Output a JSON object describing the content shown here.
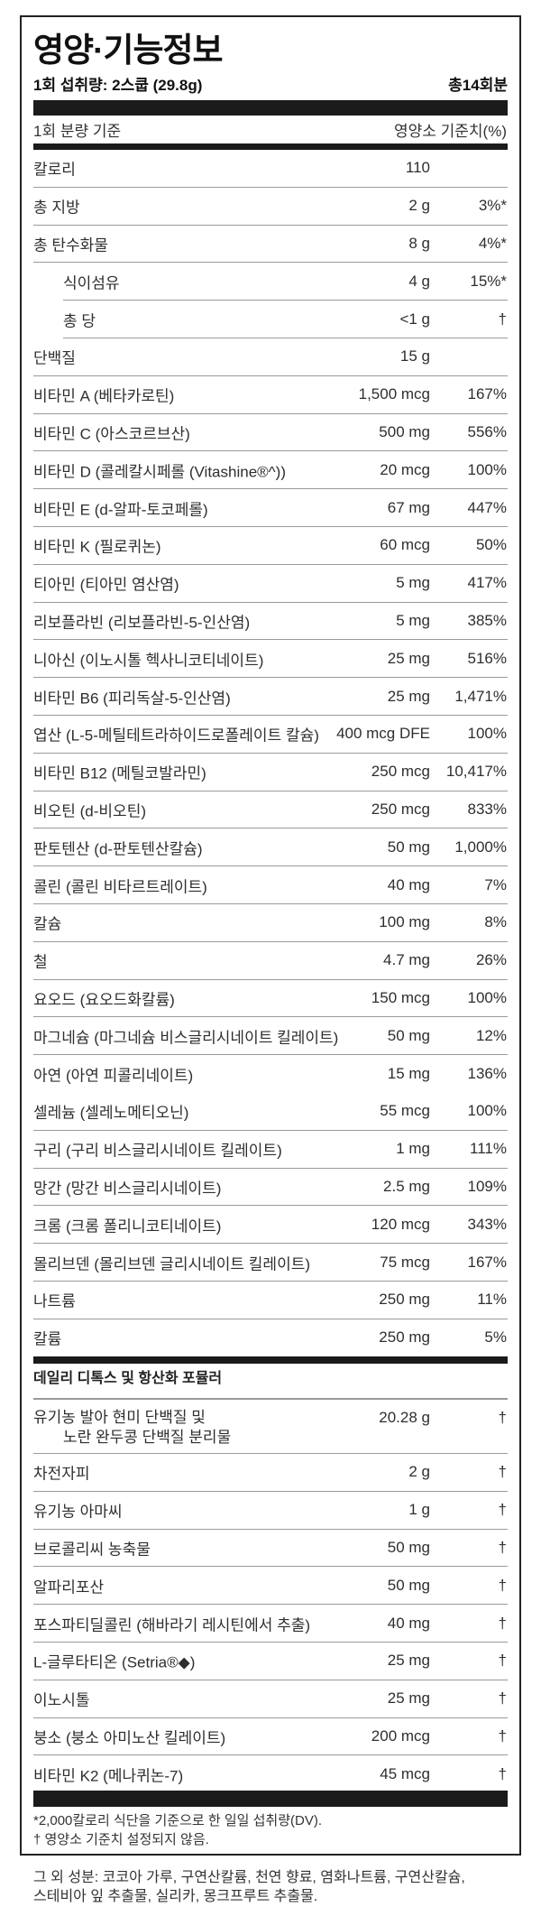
{
  "title": "영양·기능정보",
  "serving": {
    "size": "1회 섭취량: 2스쿱 (29.8g)",
    "servings": "총14회분"
  },
  "header": {
    "left": "1회 분량 기준",
    "right": "영양소 기준치(%)"
  },
  "nutrients": [
    {
      "name": "칼로리",
      "amount": "110",
      "dv": ""
    },
    {
      "name": "총 지방",
      "amount": "2 g",
      "dv": "3%*"
    },
    {
      "name": "총 탄수화물",
      "amount": "8 g",
      "dv": "4%*"
    },
    {
      "name": "식이섬유",
      "amount": "4 g",
      "dv": "15%*",
      "sub": true
    },
    {
      "name": "총 당",
      "amount": "<1 g",
      "dv": "†",
      "sub": true
    },
    {
      "name": "단백질",
      "amount": "15 g",
      "dv": ""
    },
    {
      "name": "비타민 A (베타카로틴)",
      "amount": "1,500 mcg",
      "dv": "167%"
    },
    {
      "name": "비타민 C (아스코르브산)",
      "amount": "500 mg",
      "dv": "556%"
    },
    {
      "name": "비타민 D (콜레칼시페롤 (Vitashine®^))",
      "amount": "20 mcg",
      "dv": "100%"
    },
    {
      "name": "비타민 E (d-알파-토코페롤)",
      "amount": "67 mg",
      "dv": "447%"
    },
    {
      "name": "비타민 K (필로퀴논)",
      "amount": "60 mcg",
      "dv": "50%"
    },
    {
      "name": "티아민 (티아민 염산염)",
      "amount": "5 mg",
      "dv": "417%"
    },
    {
      "name": "리보플라빈 (리보플라빈-5-인산염)",
      "amount": "5 mg",
      "dv": "385%"
    },
    {
      "name": "니아신 (이노시톨 헥사니코티네이트)",
      "amount": "25 mg",
      "dv": "516%"
    },
    {
      "name": "비타민 B6 (피리독살-5-인산염)",
      "amount": "25 mg",
      "dv": "1,471%"
    },
    {
      "name": "엽산 (L-5-메틸테트라하이드로폴레이트 칼슘)",
      "amount": "400 mcg DFE",
      "dv": "100%"
    },
    {
      "name": "비타민 B12 (메틸코발라민)",
      "amount": "250 mcg",
      "dv": "10,417%"
    },
    {
      "name": "비오틴 (d-비오틴)",
      "amount": "250 mcg",
      "dv": "833%"
    },
    {
      "name": "판토텐산 (d-판토텐산칼슘)",
      "amount": "50 mg",
      "dv": "1,000%"
    },
    {
      "name": "콜린 (콜린 비타르트레이트)",
      "amount": "40 mg",
      "dv": "7%"
    },
    {
      "name": "칼슘",
      "amount": "100 mg",
      "dv": "8%"
    },
    {
      "name": "철",
      "amount": "4.7 mg",
      "dv": "26%"
    },
    {
      "name": "요오드 (요오드화칼륨)",
      "amount": "150 mcg",
      "dv": "100%"
    },
    {
      "name": "마그네슘 (마그네슘 비스글리시네이트 킬레이트)",
      "amount": "50 mg",
      "dv": "12%"
    },
    {
      "name": "아연 (아연 피콜리네이트)",
      "amount": "15 mg",
      "dv": "136%"
    },
    {
      "name": "셀레늄 (셀레노메티오닌)",
      "amount": "55 mcg",
      "dv": "100%"
    },
    {
      "name": "구리 (구리 비스글리시네이트 킬레이트)",
      "amount": "1 mg",
      "dv": "111%"
    },
    {
      "name": "망간 (망간 비스글리시네이트)",
      "amount": "2.5 mg",
      "dv": "109%"
    },
    {
      "name": "크롬 (크롬 폴리니코티네이트)",
      "amount": "120 mcg",
      "dv": "343%"
    },
    {
      "name": "몰리브덴 (몰리브덴 글리시네이트 킬레이트)",
      "amount": "75 mcg",
      "dv": "167%"
    },
    {
      "name": "나트륨",
      "amount": "250 mg",
      "dv": "11%"
    },
    {
      "name": "칼륨",
      "amount": "250 mg",
      "dv": "5%"
    }
  ],
  "formula": {
    "title": "데일리 디톡스 및 항산화 포뮬러",
    "items": [
      {
        "name": "유기농 발아 현미 단백질 및",
        "name2": "노란 완두콩 단백질 분리물",
        "amount": "20.28 g",
        "dv": "†"
      },
      {
        "name": "차전자피",
        "amount": "2 g",
        "dv": "†"
      },
      {
        "name": "유기농 아마씨",
        "amount": "1 g",
        "dv": "†"
      },
      {
        "name": "브로콜리씨 농축물",
        "amount": "50 mg",
        "dv": "†"
      },
      {
        "name": "알파리포산",
        "amount": "50 mg",
        "dv": "†"
      },
      {
        "name": "포스파티딜콜린 (해바라기 레시틴에서 추출)",
        "amount": "40 mg",
        "dv": "†"
      },
      {
        "name": "L-글루타티온 (Setria®◆)",
        "amount": "25 mg",
        "dv": "†"
      },
      {
        "name": "이노시톨",
        "amount": "25 mg",
        "dv": "†"
      },
      {
        "name": "붕소 (붕소 아미노산 킬레이트)",
        "amount": "200 mcg",
        "dv": "†"
      },
      {
        "name": "비타민 K2 (메나퀴논-7)",
        "amount": "45 mcg",
        "dv": "†"
      }
    ]
  },
  "footnotes": [
    "*2,000칼로리 식단을 기준으로 한 일일 섭취량(DV).",
    "† 영양소 기준치 설정되지 않음."
  ],
  "other_ingredients": [
    "그 외 성분: 코코아 가루, 구연산칼륨, 천연 향료, 염화나트륨, 구연산칼슘,",
    "스테비아 잎 추출물, 실리카, 몽크프루트 추출물."
  ]
}
